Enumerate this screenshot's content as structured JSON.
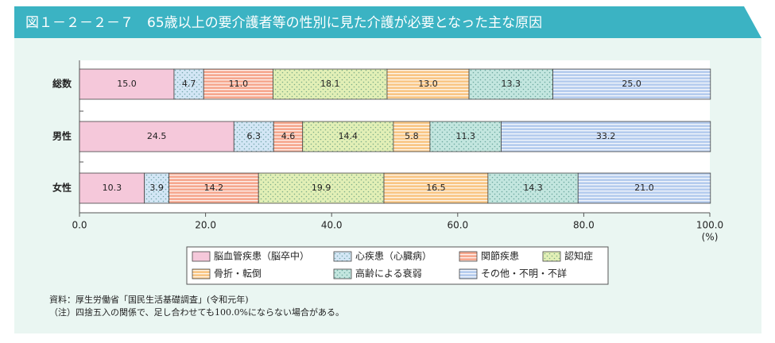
{
  "chart_data": {
    "type": "stacked-barh",
    "title": "図１－２－２－７　65歳以上の要介護者等の性別に見た介護が必要となった主な原因",
    "categories": [
      "総数",
      "男性",
      "女性"
    ],
    "series": [
      {
        "name": "脳血管疾患（脳卒中）",
        "color": "#f5c8da",
        "pattern": "solid",
        "values": [
          15.0,
          24.5,
          10.3
        ],
        "value_labels": [
          "15.0",
          "24.5",
          "10.3"
        ]
      },
      {
        "name": "心疾患（心臓病）",
        "color": "#d3e6f5",
        "pattern": "dots",
        "values": [
          4.7,
          6.3,
          3.9
        ],
        "value_labels": [
          "4.7",
          "6.3",
          "3.9"
        ]
      },
      {
        "name": "関節疾患",
        "color": "#f6a88f",
        "pattern": "stripes",
        "values": [
          11.0,
          4.6,
          14.2
        ],
        "value_labels": [
          "11.0",
          "4.6",
          "14.2"
        ]
      },
      {
        "name": "認知症",
        "color": "#e2efb6",
        "pattern": "dots",
        "values": [
          18.1,
          14.4,
          19.9
        ],
        "value_labels": [
          "18.1",
          "14.4",
          "19.9"
        ]
      },
      {
        "name": "骨折・転倒",
        "color": "#f9c685",
        "pattern": "stripes",
        "values": [
          13.0,
          5.8,
          16.5
        ],
        "value_labels": [
          "13.0",
          "5.8",
          "16.5"
        ]
      },
      {
        "name": "高齢による衰弱",
        "color": "#c3e6df",
        "pattern": "dots",
        "values": [
          13.3,
          11.3,
          14.3
        ],
        "value_labels": [
          "13.3",
          "11.3",
          "14.3"
        ]
      },
      {
        "name": "その他・不明・不詳",
        "color": "#b5ccee",
        "pattern": "stripes",
        "values": [
          25.0,
          33.2,
          21.0
        ],
        "value_labels": [
          "25.0",
          "33.2",
          "21.0"
        ]
      }
    ],
    "xlim": [
      0,
      100
    ],
    "xticks": [
      {
        "value": 0,
        "label": "0.0"
      },
      {
        "value": 20,
        "label": "20.0"
      },
      {
        "value": 40,
        "label": "40.0"
      },
      {
        "value": 60,
        "label": "60.0"
      },
      {
        "value": 80,
        "label": "80.0"
      },
      {
        "value": 100,
        "label": "100.0"
      }
    ],
    "xlabel": "(%)",
    "notes": [
      "資料：厚生労働省「国民生活基礎調査」(令和元年)",
      "（注）四捨五入の関係で、足し合わせても100.0%にならない場合がある。"
    ]
  }
}
